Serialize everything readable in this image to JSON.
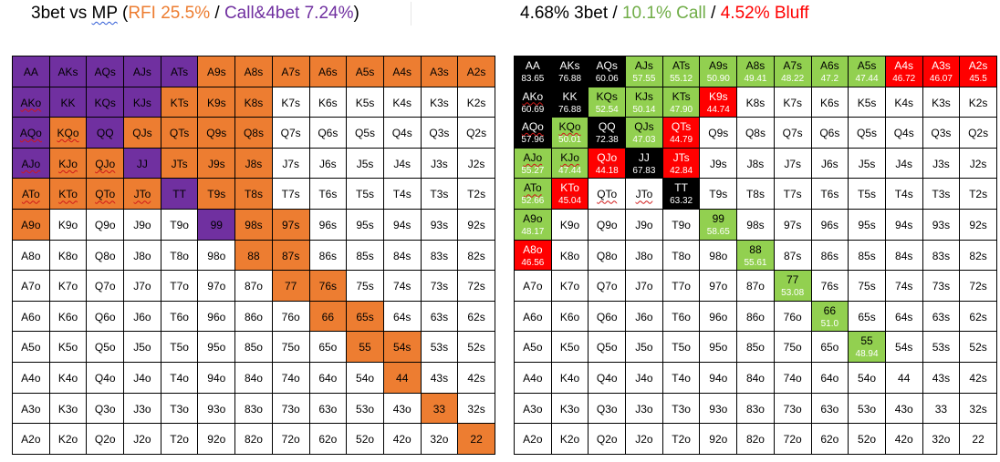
{
  "left_title": {
    "prefix": "3bet vs ",
    "mp": "MP",
    "open_paren": " (",
    "rfi": "RFI 25.5%",
    "slash": " / ",
    "call4bet": "Call&4bet 7.24%",
    "close_paren": ")"
  },
  "right_title": {
    "threebet": "4.68% 3bet",
    "slash1": " / ",
    "call": "10.1% Call",
    "slash2": " / ",
    "bluff": "4.52% Bluff"
  },
  "colors": {
    "purple": "#7030A0",
    "orange": "#ED7D31",
    "black": "#000000",
    "green": "#92D050",
    "red": "#FF0000",
    "white": "#FFFFFF"
  },
  "left_grid": [
    [
      {
        "h": "AA",
        "c": "p"
      },
      {
        "h": "AKs",
        "c": "p"
      },
      {
        "h": "AQs",
        "c": "p"
      },
      {
        "h": "AJs",
        "c": "p"
      },
      {
        "h": "ATs",
        "c": "p"
      },
      {
        "h": "A9s",
        "c": "o"
      },
      {
        "h": "A8s",
        "c": "o"
      },
      {
        "h": "A7s",
        "c": "o"
      },
      {
        "h": "A6s",
        "c": "o"
      },
      {
        "h": "A5s",
        "c": "o"
      },
      {
        "h": "A4s",
        "c": "o"
      },
      {
        "h": "A3s",
        "c": "o"
      },
      {
        "h": "A2s",
        "c": "o"
      }
    ],
    [
      {
        "h": "AKo",
        "c": "p"
      },
      {
        "h": "KK",
        "c": "p"
      },
      {
        "h": "KQs",
        "c": "p"
      },
      {
        "h": "KJs",
        "c": "p"
      },
      {
        "h": "KTs",
        "c": "o"
      },
      {
        "h": "K9s",
        "c": "o"
      },
      {
        "h": "K8s",
        "c": "o"
      },
      {
        "h": "K7s",
        "c": "w"
      },
      {
        "h": "K6s",
        "c": "w"
      },
      {
        "h": "K5s",
        "c": "w"
      },
      {
        "h": "K4s",
        "c": "w"
      },
      {
        "h": "K3s",
        "c": "w"
      },
      {
        "h": "K2s",
        "c": "w"
      }
    ],
    [
      {
        "h": "AQo",
        "c": "p"
      },
      {
        "h": "KQo",
        "c": "o"
      },
      {
        "h": "QQ",
        "c": "p"
      },
      {
        "h": "QJs",
        "c": "o"
      },
      {
        "h": "QTs",
        "c": "o"
      },
      {
        "h": "Q9s",
        "c": "o"
      },
      {
        "h": "Q8s",
        "c": "o"
      },
      {
        "h": "Q7s",
        "c": "w"
      },
      {
        "h": "Q6s",
        "c": "w"
      },
      {
        "h": "Q5s",
        "c": "w"
      },
      {
        "h": "Q4s",
        "c": "w"
      },
      {
        "h": "Q3s",
        "c": "w"
      },
      {
        "h": "Q2s",
        "c": "w"
      }
    ],
    [
      {
        "h": "AJo",
        "c": "p"
      },
      {
        "h": "KJo",
        "c": "o"
      },
      {
        "h": "QJo",
        "c": "o"
      },
      {
        "h": "JJ",
        "c": "p"
      },
      {
        "h": "JTs",
        "c": "o"
      },
      {
        "h": "J9s",
        "c": "o"
      },
      {
        "h": "J8s",
        "c": "o"
      },
      {
        "h": "J7s",
        "c": "w"
      },
      {
        "h": "J6s",
        "c": "w"
      },
      {
        "h": "J5s",
        "c": "w"
      },
      {
        "h": "J4s",
        "c": "w"
      },
      {
        "h": "J3s",
        "c": "w"
      },
      {
        "h": "J2s",
        "c": "w"
      }
    ],
    [
      {
        "h": "ATo",
        "c": "o"
      },
      {
        "h": "KTo",
        "c": "o"
      },
      {
        "h": "QTo",
        "c": "o"
      },
      {
        "h": "JTo",
        "c": "o"
      },
      {
        "h": "TT",
        "c": "p"
      },
      {
        "h": "T9s",
        "c": "o"
      },
      {
        "h": "T8s",
        "c": "o"
      },
      {
        "h": "T7s",
        "c": "w"
      },
      {
        "h": "T6s",
        "c": "w"
      },
      {
        "h": "T5s",
        "c": "w"
      },
      {
        "h": "T4s",
        "c": "w"
      },
      {
        "h": "T3s",
        "c": "w"
      },
      {
        "h": "T2s",
        "c": "w"
      }
    ],
    [
      {
        "h": "A9o",
        "c": "o"
      },
      {
        "h": "K9o",
        "c": "w"
      },
      {
        "h": "Q9o",
        "c": "w"
      },
      {
        "h": "J9o",
        "c": "w"
      },
      {
        "h": "T9o",
        "c": "w"
      },
      {
        "h": "99",
        "c": "p"
      },
      {
        "h": "98s",
        "c": "o"
      },
      {
        "h": "97s",
        "c": "o"
      },
      {
        "h": "96s",
        "c": "w"
      },
      {
        "h": "95s",
        "c": "w"
      },
      {
        "h": "94s",
        "c": "w"
      },
      {
        "h": "93s",
        "c": "w"
      },
      {
        "h": "92s",
        "c": "w"
      }
    ],
    [
      {
        "h": "A8o",
        "c": "w"
      },
      {
        "h": "K8o",
        "c": "w"
      },
      {
        "h": "Q8o",
        "c": "w"
      },
      {
        "h": "J8o",
        "c": "w"
      },
      {
        "h": "T8o",
        "c": "w"
      },
      {
        "h": "98o",
        "c": "w"
      },
      {
        "h": "88",
        "c": "o"
      },
      {
        "h": "87s",
        "c": "o"
      },
      {
        "h": "86s",
        "c": "w"
      },
      {
        "h": "85s",
        "c": "w"
      },
      {
        "h": "84s",
        "c": "w"
      },
      {
        "h": "83s",
        "c": "w"
      },
      {
        "h": "82s",
        "c": "w"
      }
    ],
    [
      {
        "h": "A7o",
        "c": "w"
      },
      {
        "h": "K7o",
        "c": "w"
      },
      {
        "h": "Q7o",
        "c": "w"
      },
      {
        "h": "J7o",
        "c": "w"
      },
      {
        "h": "T7o",
        "c": "w"
      },
      {
        "h": "97o",
        "c": "w"
      },
      {
        "h": "87o",
        "c": "w"
      },
      {
        "h": "77",
        "c": "o"
      },
      {
        "h": "76s",
        "c": "o"
      },
      {
        "h": "75s",
        "c": "w"
      },
      {
        "h": "74s",
        "c": "w"
      },
      {
        "h": "73s",
        "c": "w"
      },
      {
        "h": "72s",
        "c": "w"
      }
    ],
    [
      {
        "h": "A6o",
        "c": "w"
      },
      {
        "h": "K6o",
        "c": "w"
      },
      {
        "h": "Q6o",
        "c": "w"
      },
      {
        "h": "J6o",
        "c": "w"
      },
      {
        "h": "T6o",
        "c": "w"
      },
      {
        "h": "96o",
        "c": "w"
      },
      {
        "h": "86o",
        "c": "w"
      },
      {
        "h": "76o",
        "c": "w"
      },
      {
        "h": "66",
        "c": "o"
      },
      {
        "h": "65s",
        "c": "o"
      },
      {
        "h": "64s",
        "c": "w"
      },
      {
        "h": "63s",
        "c": "w"
      },
      {
        "h": "62s",
        "c": "w"
      }
    ],
    [
      {
        "h": "A5o",
        "c": "w"
      },
      {
        "h": "K5o",
        "c": "w"
      },
      {
        "h": "Q5o",
        "c": "w"
      },
      {
        "h": "J5o",
        "c": "w"
      },
      {
        "h": "T5o",
        "c": "w"
      },
      {
        "h": "95o",
        "c": "w"
      },
      {
        "h": "85o",
        "c": "w"
      },
      {
        "h": "75o",
        "c": "w"
      },
      {
        "h": "65o",
        "c": "w"
      },
      {
        "h": "55",
        "c": "o"
      },
      {
        "h": "54s",
        "c": "o"
      },
      {
        "h": "53s",
        "c": "w"
      },
      {
        "h": "52s",
        "c": "w"
      }
    ],
    [
      {
        "h": "A4o",
        "c": "w"
      },
      {
        "h": "K4o",
        "c": "w"
      },
      {
        "h": "Q4o",
        "c": "w"
      },
      {
        "h": "J4o",
        "c": "w"
      },
      {
        "h": "T4o",
        "c": "w"
      },
      {
        "h": "94o",
        "c": "w"
      },
      {
        "h": "84o",
        "c": "w"
      },
      {
        "h": "74o",
        "c": "w"
      },
      {
        "h": "64o",
        "c": "w"
      },
      {
        "h": "54o",
        "c": "w"
      },
      {
        "h": "44",
        "c": "o"
      },
      {
        "h": "43s",
        "c": "w"
      },
      {
        "h": "42s",
        "c": "w"
      }
    ],
    [
      {
        "h": "A3o",
        "c": "w"
      },
      {
        "h": "K3o",
        "c": "w"
      },
      {
        "h": "Q3o",
        "c": "w"
      },
      {
        "h": "J3o",
        "c": "w"
      },
      {
        "h": "T3o",
        "c": "w"
      },
      {
        "h": "93o",
        "c": "w"
      },
      {
        "h": "83o",
        "c": "w"
      },
      {
        "h": "73o",
        "c": "w"
      },
      {
        "h": "63o",
        "c": "w"
      },
      {
        "h": "53o",
        "c": "w"
      },
      {
        "h": "43o",
        "c": "w"
      },
      {
        "h": "33",
        "c": "o"
      },
      {
        "h": "32s",
        "c": "w"
      }
    ],
    [
      {
        "h": "A2o",
        "c": "w"
      },
      {
        "h": "K2o",
        "c": "w"
      },
      {
        "h": "Q2o",
        "c": "w"
      },
      {
        "h": "J2o",
        "c": "w"
      },
      {
        "h": "T2o",
        "c": "w"
      },
      {
        "h": "92o",
        "c": "w"
      },
      {
        "h": "82o",
        "c": "w"
      },
      {
        "h": "72o",
        "c": "w"
      },
      {
        "h": "62o",
        "c": "w"
      },
      {
        "h": "52o",
        "c": "w"
      },
      {
        "h": "42o",
        "c": "w"
      },
      {
        "h": "32o",
        "c": "w"
      },
      {
        "h": "22",
        "c": "o"
      }
    ]
  ],
  "right_grid": [
    [
      {
        "h": "AA",
        "p": "83.65",
        "c": "k"
      },
      {
        "h": "AKs",
        "p": "76.88",
        "c": "k"
      },
      {
        "h": "AQs",
        "p": "60.06",
        "c": "k"
      },
      {
        "h": "AJs",
        "p": "57.55",
        "c": "g"
      },
      {
        "h": "ATs",
        "p": "55.12",
        "c": "g"
      },
      {
        "h": "A9s",
        "p": "50.90",
        "c": "g"
      },
      {
        "h": "A8s",
        "p": "49.41",
        "c": "g"
      },
      {
        "h": "A7s",
        "p": "48.22",
        "c": "g"
      },
      {
        "h": "A6s",
        "p": "47.2",
        "c": "g"
      },
      {
        "h": "A5s",
        "p": "47.44",
        "c": "g"
      },
      {
        "h": "A4s",
        "p": "46.72",
        "c": "r"
      },
      {
        "h": "A3s",
        "p": "46.07",
        "c": "r"
      },
      {
        "h": "A2s",
        "p": "45.5",
        "c": "r"
      }
    ],
    [
      {
        "h": "AKo",
        "p": "60.69",
        "c": "k"
      },
      {
        "h": "KK",
        "p": "76.88",
        "c": "k"
      },
      {
        "h": "KQs",
        "p": "52.54",
        "c": "g"
      },
      {
        "h": "KJs",
        "p": "50.14",
        "c": "g"
      },
      {
        "h": "KTs",
        "p": "47.90",
        "c": "g"
      },
      {
        "h": "K9s",
        "p": "44.74",
        "c": "r"
      },
      {
        "h": "K8s",
        "c": "w"
      },
      {
        "h": "K7s",
        "c": "w"
      },
      {
        "h": "K6s",
        "c": "w"
      },
      {
        "h": "K5s",
        "c": "w"
      },
      {
        "h": "K4s",
        "c": "w"
      },
      {
        "h": "K3s",
        "c": "w"
      },
      {
        "h": "K2s",
        "c": "w"
      }
    ],
    [
      {
        "h": "AQo",
        "p": "57.96",
        "c": "k"
      },
      {
        "h": "KQo",
        "p": "50.01",
        "c": "g"
      },
      {
        "h": "QQ",
        "p": "72.38",
        "c": "k"
      },
      {
        "h": "QJs",
        "p": "47.03",
        "c": "g"
      },
      {
        "h": "QTs",
        "p": "44.79",
        "c": "r"
      },
      {
        "h": "Q9s",
        "c": "w"
      },
      {
        "h": "Q8s",
        "c": "w"
      },
      {
        "h": "Q7s",
        "c": "w"
      },
      {
        "h": "Q6s",
        "c": "w"
      },
      {
        "h": "Q5s",
        "c": "w"
      },
      {
        "h": "Q4s",
        "c": "w"
      },
      {
        "h": "Q3s",
        "c": "w"
      },
      {
        "h": "Q2s",
        "c": "w"
      }
    ],
    [
      {
        "h": "AJo",
        "p": "55.27",
        "c": "g"
      },
      {
        "h": "KJo",
        "p": "47.44",
        "c": "g"
      },
      {
        "h": "QJo",
        "p": "44.18",
        "c": "r"
      },
      {
        "h": "JJ",
        "p": "67.83",
        "c": "k"
      },
      {
        "h": "JTs",
        "p": "42.84",
        "c": "r"
      },
      {
        "h": "J9s",
        "c": "w"
      },
      {
        "h": "J8s",
        "c": "w"
      },
      {
        "h": "J7s",
        "c": "w"
      },
      {
        "h": "J6s",
        "c": "w"
      },
      {
        "h": "J5s",
        "c": "w"
      },
      {
        "h": "J4s",
        "c": "w"
      },
      {
        "h": "J3s",
        "c": "w"
      },
      {
        "h": "J2s",
        "c": "w"
      }
    ],
    [
      {
        "h": "ATo",
        "p": "52.66",
        "c": "g"
      },
      {
        "h": "KTo",
        "p": "45.04",
        "c": "r"
      },
      {
        "h": "QTo",
        "c": "w"
      },
      {
        "h": "JTo",
        "c": "w"
      },
      {
        "h": "TT",
        "p": "63.32",
        "c": "k"
      },
      {
        "h": "T9s",
        "c": "w"
      },
      {
        "h": "T8s",
        "c": "w"
      },
      {
        "h": "T7s",
        "c": "w"
      },
      {
        "h": "T6s",
        "c": "w"
      },
      {
        "h": "T5s",
        "c": "w"
      },
      {
        "h": "T4s",
        "c": "w"
      },
      {
        "h": "T3s",
        "c": "w"
      },
      {
        "h": "T2s",
        "c": "w"
      }
    ],
    [
      {
        "h": "A9o",
        "p": "48.17",
        "c": "g"
      },
      {
        "h": "K9o",
        "c": "w"
      },
      {
        "h": "Q9o",
        "c": "w"
      },
      {
        "h": "J9o",
        "c": "w"
      },
      {
        "h": "T9o",
        "c": "w"
      },
      {
        "h": "99",
        "p": "58.65",
        "c": "g"
      },
      {
        "h": "98s",
        "c": "w"
      },
      {
        "h": "97s",
        "c": "w"
      },
      {
        "h": "96s",
        "c": "w"
      },
      {
        "h": "95s",
        "c": "w"
      },
      {
        "h": "94s",
        "c": "w"
      },
      {
        "h": "93s",
        "c": "w"
      },
      {
        "h": "92s",
        "c": "w"
      }
    ],
    [
      {
        "h": "A8o",
        "p": "46.56",
        "c": "r"
      },
      {
        "h": "K8o",
        "c": "w"
      },
      {
        "h": "Q8o",
        "c": "w"
      },
      {
        "h": "J8o",
        "c": "w"
      },
      {
        "h": "T8o",
        "c": "w"
      },
      {
        "h": "98o",
        "c": "w"
      },
      {
        "h": "88",
        "p": "55.61",
        "c": "g"
      },
      {
        "h": "87s",
        "c": "w"
      },
      {
        "h": "86s",
        "c": "w"
      },
      {
        "h": "85s",
        "c": "w"
      },
      {
        "h": "84s",
        "c": "w"
      },
      {
        "h": "83s",
        "c": "w"
      },
      {
        "h": "82s",
        "c": "w"
      }
    ],
    [
      {
        "h": "A7o",
        "c": "w"
      },
      {
        "h": "K7o",
        "c": "w"
      },
      {
        "h": "Q7o",
        "c": "w"
      },
      {
        "h": "J7o",
        "c": "w"
      },
      {
        "h": "T7o",
        "c": "w"
      },
      {
        "h": "97o",
        "c": "w"
      },
      {
        "h": "87o",
        "c": "w"
      },
      {
        "h": "77",
        "p": "53.08",
        "c": "g"
      },
      {
        "h": "76s",
        "c": "w"
      },
      {
        "h": "75s",
        "c": "w"
      },
      {
        "h": "74s",
        "c": "w"
      },
      {
        "h": "73s",
        "c": "w"
      },
      {
        "h": "72s",
        "c": "w"
      }
    ],
    [
      {
        "h": "A6o",
        "c": "w"
      },
      {
        "h": "K6o",
        "c": "w"
      },
      {
        "h": "Q6o",
        "c": "w"
      },
      {
        "h": "J6o",
        "c": "w"
      },
      {
        "h": "T6o",
        "c": "w"
      },
      {
        "h": "96o",
        "c": "w"
      },
      {
        "h": "86o",
        "c": "w"
      },
      {
        "h": "76o",
        "c": "w"
      },
      {
        "h": "66",
        "p": "51.0",
        "c": "g"
      },
      {
        "h": "65s",
        "c": "w"
      },
      {
        "h": "64s",
        "c": "w"
      },
      {
        "h": "63s",
        "c": "w"
      },
      {
        "h": "62s",
        "c": "w"
      }
    ],
    [
      {
        "h": "A5o",
        "c": "w"
      },
      {
        "h": "K5o",
        "c": "w"
      },
      {
        "h": "Q5o",
        "c": "w"
      },
      {
        "h": "J5o",
        "c": "w"
      },
      {
        "h": "T5o",
        "c": "w"
      },
      {
        "h": "95o",
        "c": "w"
      },
      {
        "h": "85o",
        "c": "w"
      },
      {
        "h": "75o",
        "c": "w"
      },
      {
        "h": "65o",
        "c": "w"
      },
      {
        "h": "55",
        "p": "48.94",
        "c": "g"
      },
      {
        "h": "54s",
        "c": "w"
      },
      {
        "h": "53s",
        "c": "w"
      },
      {
        "h": "52s",
        "c": "w"
      }
    ],
    [
      {
        "h": "A4o",
        "c": "w"
      },
      {
        "h": "K4o",
        "c": "w"
      },
      {
        "h": "Q4o",
        "c": "w"
      },
      {
        "h": "J4o",
        "c": "w"
      },
      {
        "h": "T4o",
        "c": "w"
      },
      {
        "h": "94o",
        "c": "w"
      },
      {
        "h": "84o",
        "c": "w"
      },
      {
        "h": "74o",
        "c": "w"
      },
      {
        "h": "64o",
        "c": "w"
      },
      {
        "h": "54o",
        "c": "w"
      },
      {
        "h": "44",
        "c": "w"
      },
      {
        "h": "43s",
        "c": "w"
      },
      {
        "h": "42s",
        "c": "w"
      }
    ],
    [
      {
        "h": "A3o",
        "c": "w"
      },
      {
        "h": "K3o",
        "c": "w"
      },
      {
        "h": "Q3o",
        "c": "w"
      },
      {
        "h": "J3o",
        "c": "w"
      },
      {
        "h": "T3o",
        "c": "w"
      },
      {
        "h": "93o",
        "c": "w"
      },
      {
        "h": "83o",
        "c": "w"
      },
      {
        "h": "73o",
        "c": "w"
      },
      {
        "h": "63o",
        "c": "w"
      },
      {
        "h": "53o",
        "c": "w"
      },
      {
        "h": "43o",
        "c": "w"
      },
      {
        "h": "33",
        "c": "w"
      },
      {
        "h": "32s",
        "c": "w"
      }
    ],
    [
      {
        "h": "A2o",
        "c": "w"
      },
      {
        "h": "K2o",
        "c": "w"
      },
      {
        "h": "Q2o",
        "c": "w"
      },
      {
        "h": "J2o",
        "c": "w"
      },
      {
        "h": "T2o",
        "c": "w"
      },
      {
        "h": "92o",
        "c": "w"
      },
      {
        "h": "82o",
        "c": "w"
      },
      {
        "h": "72o",
        "c": "w"
      },
      {
        "h": "62o",
        "c": "w"
      },
      {
        "h": "52o",
        "c": "w"
      },
      {
        "h": "42o",
        "c": "w"
      },
      {
        "h": "32o",
        "c": "w"
      },
      {
        "h": "22",
        "c": "w"
      }
    ]
  ]
}
